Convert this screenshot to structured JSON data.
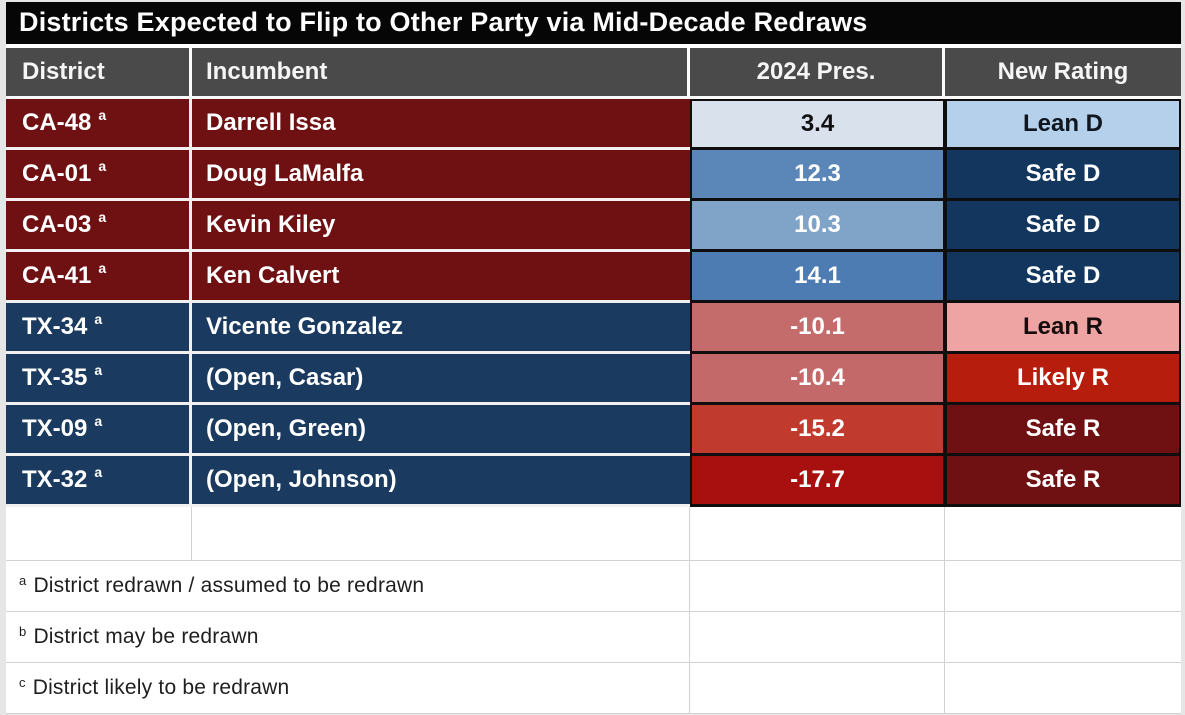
{
  "title": "Districts Expected to Flip to Other Party via Mid-Decade Redraws",
  "header": {
    "columns": [
      "District",
      "Incumbent",
      "2024 Pres.",
      "New Rating"
    ]
  },
  "rows": [
    {
      "district": "CA-48",
      "note": "a",
      "incumbent": "Darrell Issa",
      "pres": "3.4",
      "rating": "Lean D",
      "colors": {
        "label_bg": "#6F1113",
        "label_fg": "#FFFFFF",
        "pres_bg": "#D9E1EC",
        "pres_fg": "#121212",
        "rating_bg": "#B4D0EB",
        "rating_fg": "#10161F"
      }
    },
    {
      "district": "CA-01",
      "note": "a",
      "incumbent": "Doug LaMalfa",
      "pres": "12.3",
      "rating": "Safe D",
      "colors": {
        "label_bg": "#6F1113",
        "label_fg": "#FFFFFF",
        "pres_bg": "#5A87B8",
        "pres_fg": "#FFFFFF",
        "rating_bg": "#12365E",
        "rating_fg": "#FFFFFF"
      }
    },
    {
      "district": "CA-03",
      "note": "a",
      "incumbent": "Kevin Kiley",
      "pres": "10.3",
      "rating": "Safe D",
      "colors": {
        "label_bg": "#6F1113",
        "label_fg": "#FFFFFF",
        "pres_bg": "#80A4C8",
        "pres_fg": "#FFFFFF",
        "rating_bg": "#12365E",
        "rating_fg": "#FFFFFF"
      }
    },
    {
      "district": "CA-41",
      "note": "a",
      "incumbent": "Ken Calvert",
      "pres": "14.1",
      "rating": "Safe D",
      "colors": {
        "label_bg": "#6F1113",
        "label_fg": "#FFFFFF",
        "pres_bg": "#4C7CB2",
        "pres_fg": "#FFFFFF",
        "rating_bg": "#12365E",
        "rating_fg": "#FFFFFF"
      }
    },
    {
      "district": "TX-34",
      "note": "a",
      "incumbent": "Vicente Gonzalez",
      "pres": "-10.1",
      "rating": "Lean R",
      "colors": {
        "label_bg": "#1A3A5F",
        "label_fg": "#FFFFFF",
        "pres_bg": "#C46B6B",
        "pres_fg": "#FFFFFF",
        "rating_bg": "#EFA4A4",
        "rating_fg": "#170C0C"
      }
    },
    {
      "district": "TX-35",
      "note": "a",
      "incumbent": "(Open, Casar)",
      "pres": "-10.4",
      "rating": "Likely R",
      "colors": {
        "label_bg": "#1A3A5F",
        "label_fg": "#FFFFFF",
        "pres_bg": "#C3696A",
        "pres_fg": "#FFFFFF",
        "rating_bg": "#B61D0C",
        "rating_fg": "#FFFFFF"
      }
    },
    {
      "district": "TX-09",
      "note": "a",
      "incumbent": "(Open, Green)",
      "pres": "-15.2",
      "rating": "Safe R",
      "colors": {
        "label_bg": "#1A3A5F",
        "label_fg": "#FFFFFF",
        "pres_bg": "#C13A2E",
        "pres_fg": "#FFFFFF",
        "rating_bg": "#6F1113",
        "rating_fg": "#FFFFFF"
      }
    },
    {
      "district": "TX-32",
      "note": "a",
      "incumbent": "(Open, Johnson)",
      "pres": "-17.7",
      "rating": "Safe R",
      "colors": {
        "label_bg": "#1A3A5F",
        "label_fg": "#FFFFFF",
        "pres_bg": "#A80F0F",
        "pres_fg": "#FFFFFF",
        "rating_bg": "#6F1113",
        "rating_fg": "#FFFFFF"
      }
    }
  ],
  "footnotes": [
    {
      "marker": "a",
      "text": "District redrawn / assumed to be redrawn"
    },
    {
      "marker": "b",
      "text": "District may be redrawn"
    },
    {
      "marker": "c",
      "text": "District likely to be redrawn"
    }
  ],
  "chart_data": {
    "type": "table",
    "title": "Districts Expected to Flip to Other Party via Mid-Decade Redraws",
    "columns": [
      "District",
      "Incumbent",
      "2024 Pres.",
      "New Rating"
    ],
    "rows": [
      [
        "CA-48 a",
        "Darrell Issa",
        3.4,
        "Lean D"
      ],
      [
        "CA-01 a",
        "Doug LaMalfa",
        12.3,
        "Safe D"
      ],
      [
        "CA-03 a",
        "Kevin Kiley",
        10.3,
        "Safe D"
      ],
      [
        "CA-41 a",
        "Ken Calvert",
        14.1,
        "Safe D"
      ],
      [
        "TX-34 a",
        "Vicente Gonzalez",
        -10.1,
        "Lean R"
      ],
      [
        "TX-35 a",
        "(Open, Casar)",
        -10.4,
        "Likely R"
      ],
      [
        "TX-09 a",
        "(Open, Green)",
        -15.2,
        "Safe R"
      ],
      [
        "TX-32 a",
        "(Open, Johnson)",
        -17.7,
        "Safe R"
      ]
    ],
    "notes": [
      "a District redrawn / assumed to be redrawn",
      "b District may be redrawn",
      "c District likely to be redrawn"
    ],
    "color_semantics": {
      "democrat_safe": "#12365E",
      "democrat_lean": "#B4D0EB",
      "republican_safe": "#6F1113",
      "republican_likely": "#B61D0C",
      "republican_lean": "#EFA4A4"
    }
  }
}
